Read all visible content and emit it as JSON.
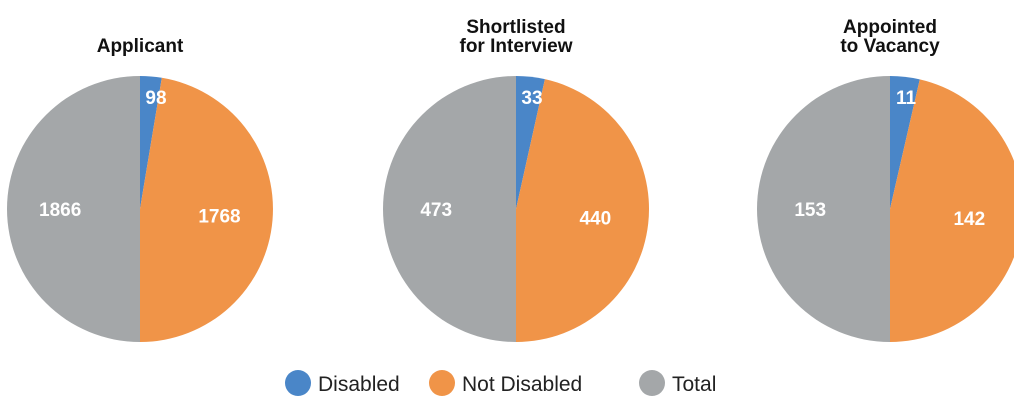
{
  "chart_data": {
    "type": "pie",
    "colors": {
      "Disabled": "#4a86c8",
      "Not Disabled": "#f09448",
      "Total": "#a4a7a9"
    },
    "charts": [
      {
        "title_lines": [
          "Applicant"
        ],
        "slices": [
          {
            "label": "Disabled",
            "value": 98
          },
          {
            "label": "Not Disabled",
            "value": 1768
          },
          {
            "label": "Total",
            "value": 1866
          }
        ]
      },
      {
        "title_lines": [
          "Shortlisted",
          "for Interview"
        ],
        "slices": [
          {
            "label": "Disabled",
            "value": 33
          },
          {
            "label": "Not Disabled",
            "value": 440
          },
          {
            "label": "Total",
            "value": 473
          }
        ]
      },
      {
        "title_lines": [
          "Appointed",
          "to Vacancy"
        ],
        "slices": [
          {
            "label": "Disabled",
            "value": 11
          },
          {
            "label": "Not Disabled",
            "value": 142
          },
          {
            "label": "Total",
            "value": 153
          }
        ]
      }
    ],
    "legend": {
      "placement": "bottom",
      "items": [
        "Disabled",
        "Not Disabled",
        "Total"
      ]
    }
  }
}
